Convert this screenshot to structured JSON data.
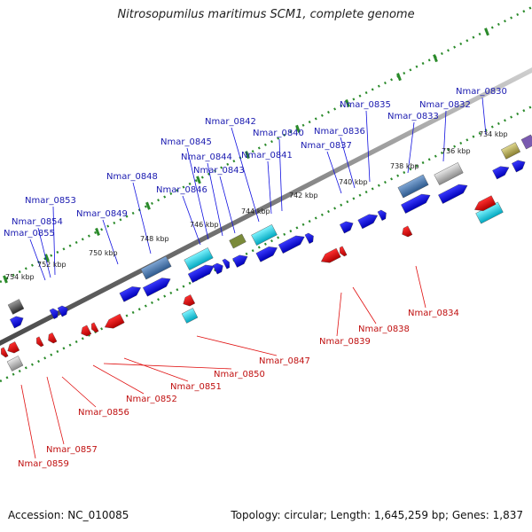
{
  "title": "Nitrosopumilus maritimus SCM1, complete genome",
  "footer": {
    "accession": "Accession: NC_010085",
    "topology": "Topology: circular; Length: 1,645,259 bp; Genes: 1,837"
  },
  "colors": {
    "forward": "#1010e0",
    "reverse": "#e01010",
    "backbone": "#888888",
    "tick": "#2a8a2a",
    "forward_label": "#1a1ab0",
    "reverse_label": "#c01010"
  },
  "ticks": [
    {
      "label": "734 kbp"
    },
    {
      "label": "736 kbp"
    },
    {
      "label": "738 kbp"
    },
    {
      "label": "740 kbp"
    },
    {
      "label": "742 kbp"
    },
    {
      "label": "744 kbp"
    },
    {
      "label": "746 kbp"
    },
    {
      "label": "748 kbp"
    },
    {
      "label": "750 kbp"
    },
    {
      "label": "752 kbp"
    },
    {
      "label": "754 kbp"
    }
  ],
  "forward_genes": [
    {
      "name": "Nmar_0830"
    },
    {
      "name": "Nmar_0832"
    },
    {
      "name": "Nmar_0833"
    },
    {
      "name": "Nmar_0835"
    },
    {
      "name": "Nmar_0836"
    },
    {
      "name": "Nmar_0837"
    },
    {
      "name": "Nmar_0840"
    },
    {
      "name": "Nmar_0841"
    },
    {
      "name": "Nmar_0842"
    },
    {
      "name": "Nmar_0843"
    },
    {
      "name": "Nmar_0844"
    },
    {
      "name": "Nmar_0845"
    },
    {
      "name": "Nmar_0846"
    },
    {
      "name": "Nmar_0848"
    },
    {
      "name": "Nmar_0849"
    },
    {
      "name": "Nmar_0853"
    },
    {
      "name": "Nmar_0854"
    },
    {
      "name": "Nmar_0855"
    }
  ],
  "reverse_genes": [
    {
      "name": "Nmar_0834"
    },
    {
      "name": "Nmar_0838"
    },
    {
      "name": "Nmar_0839"
    },
    {
      "name": "Nmar_0847"
    },
    {
      "name": "Nmar_0850"
    },
    {
      "name": "Nmar_0851"
    },
    {
      "name": "Nmar_0852"
    },
    {
      "name": "Nmar_0856"
    },
    {
      "name": "Nmar_0857"
    },
    {
      "name": "Nmar_0859"
    }
  ]
}
